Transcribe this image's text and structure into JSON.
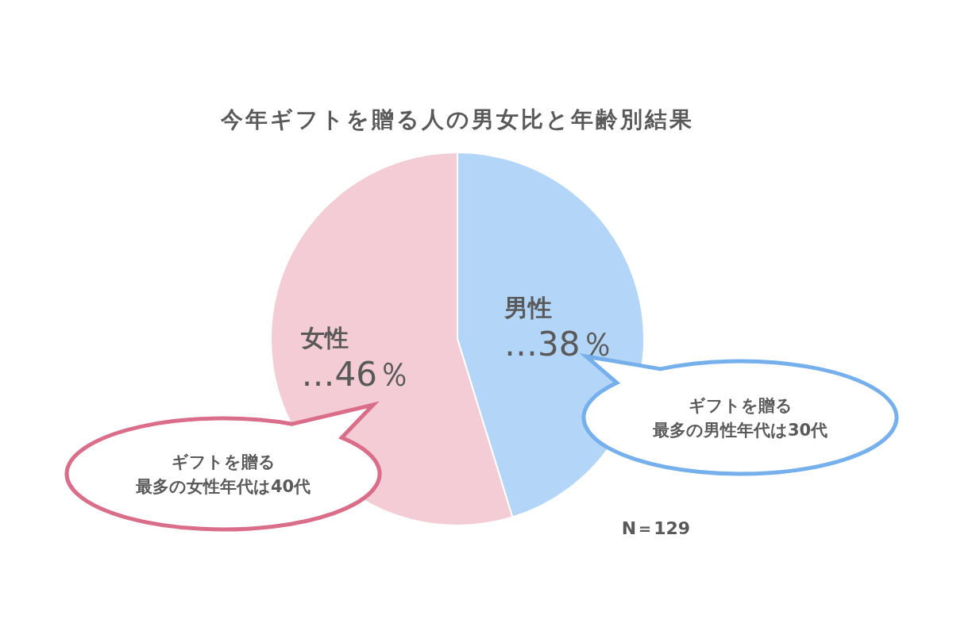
{
  "chart_data": {
    "type": "pie",
    "title": "今年ギフトを贈る人の男女比と年齢別結果",
    "categories": [
      "男性",
      "女性"
    ],
    "values": [
      38,
      46
    ],
    "colors": [
      "#b3d5f7",
      "#f3ccd6"
    ],
    "value_labels": [
      "…38％",
      "…46％"
    ],
    "annotations": [
      "ギフトを贈る",
      "最多の男性年代は30代",
      "ギフトを贈る",
      "最多の女性年代は40代",
      "N＝129"
    ]
  }
}
